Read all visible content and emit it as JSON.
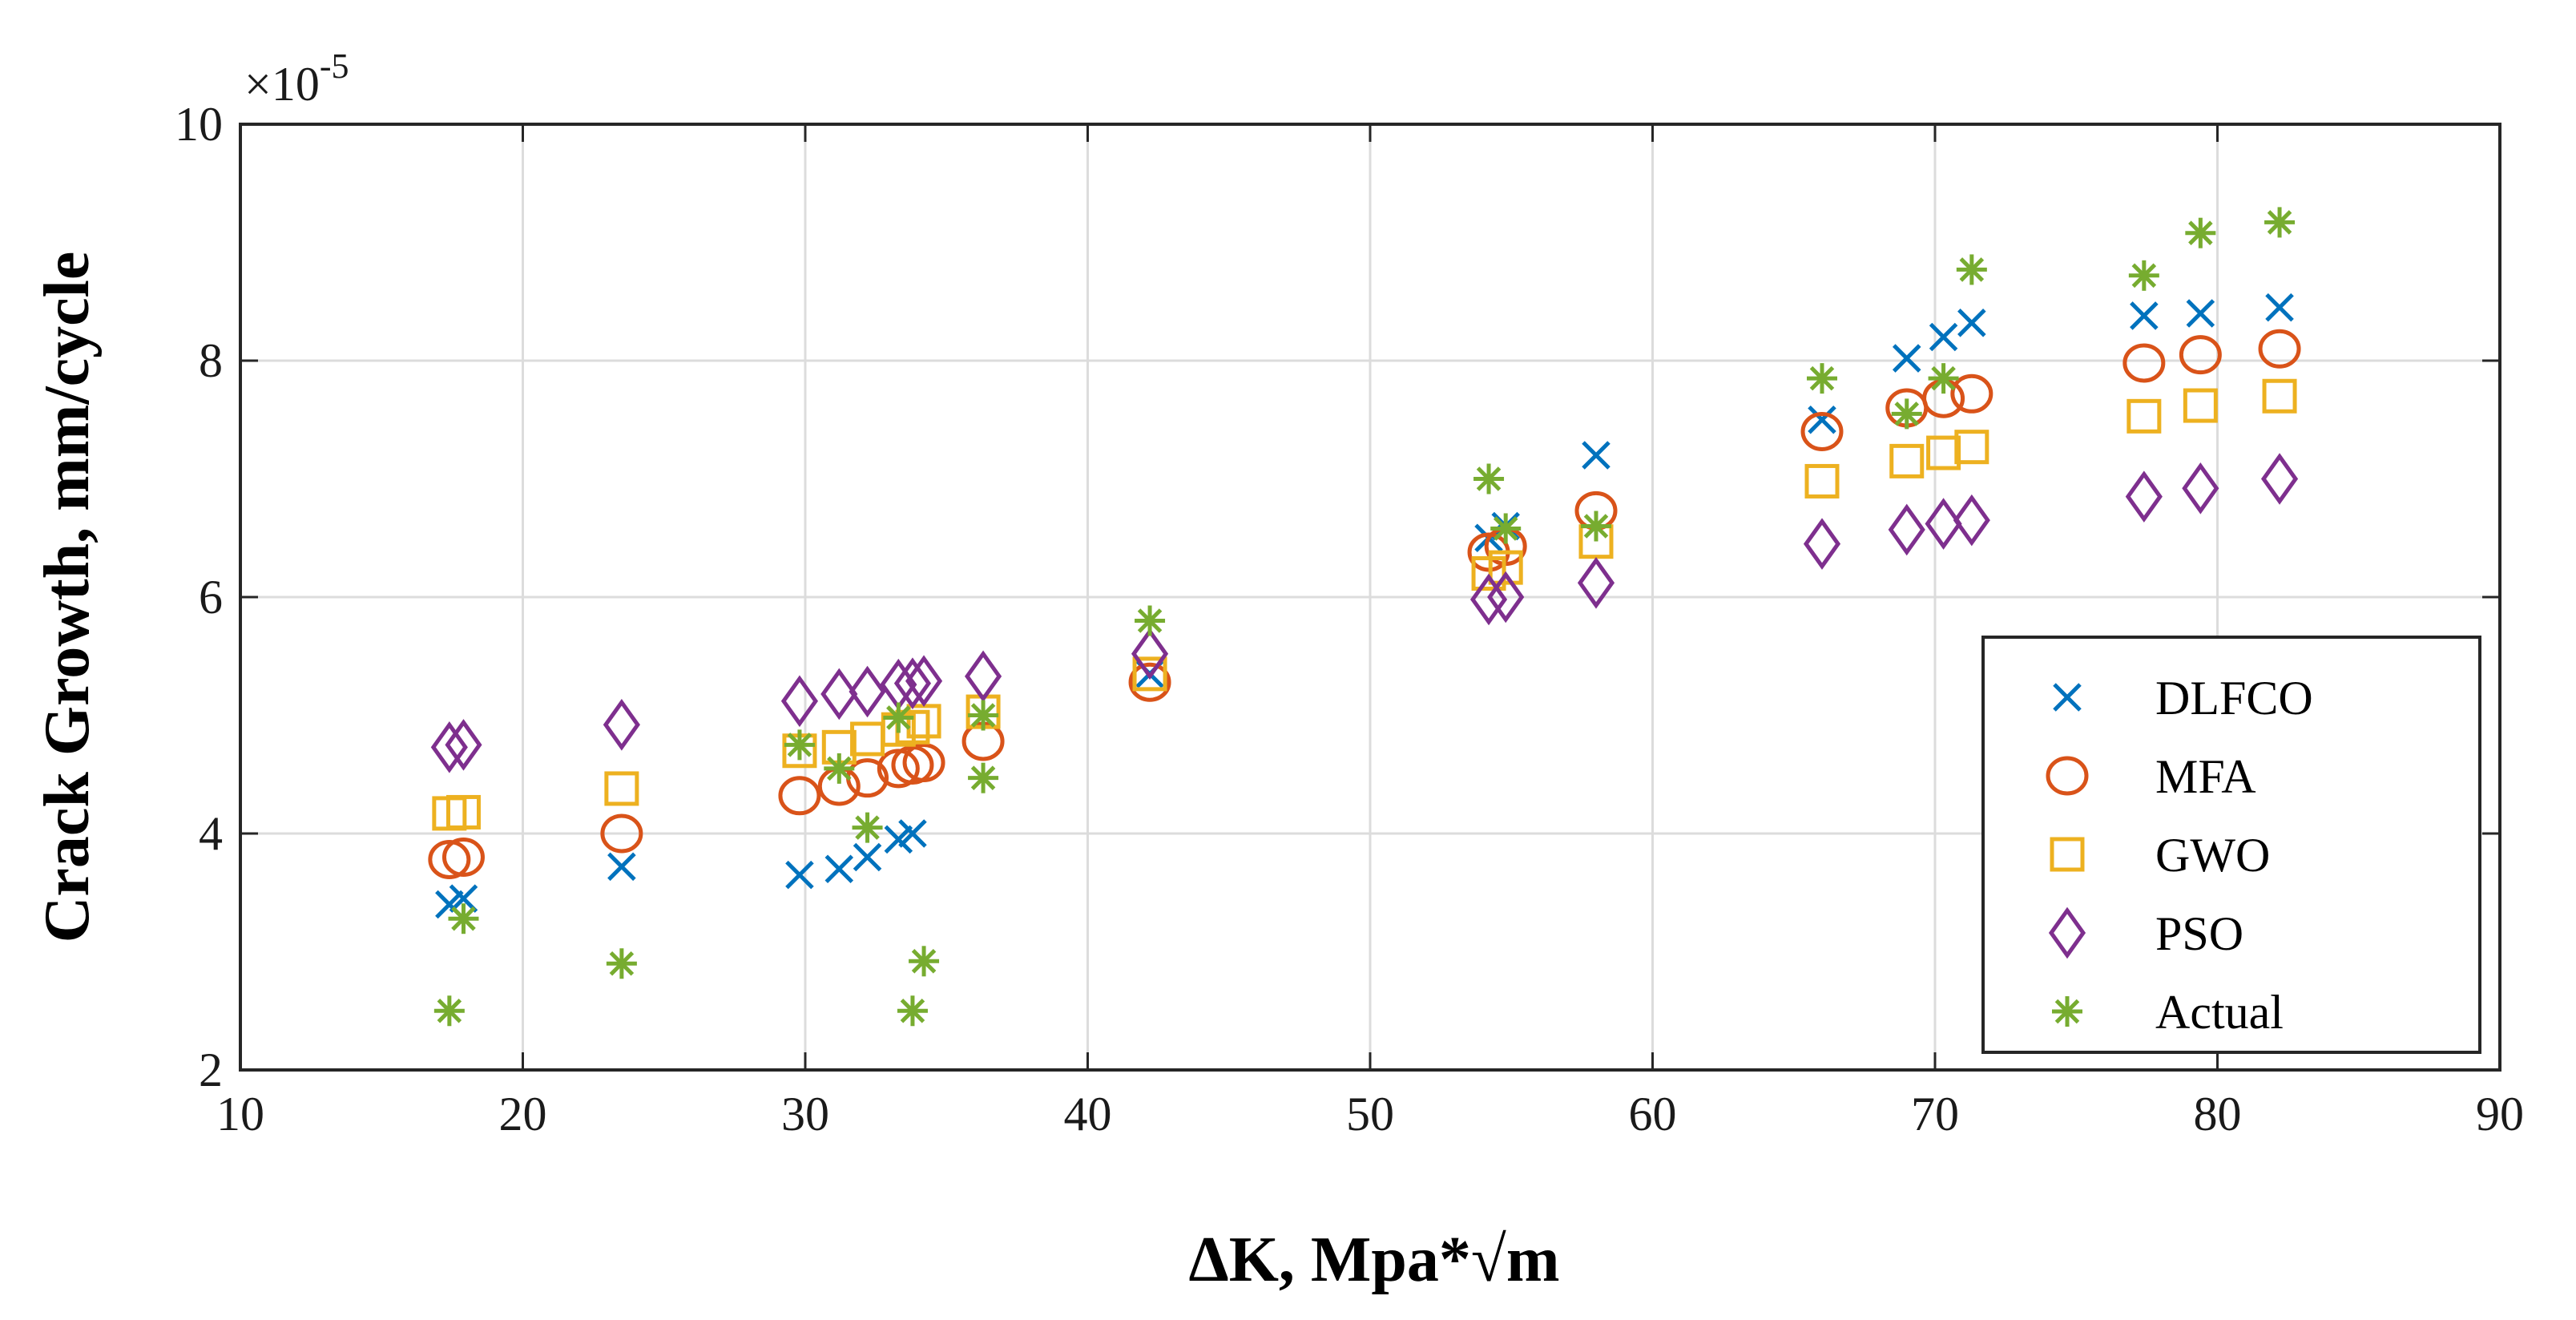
{
  "chart_data": {
    "type": "scatter",
    "title": "",
    "xlabel": "ΔK, Mpa*√m",
    "ylabel": "Crack Growth, mm/cycle",
    "xlim": [
      10,
      90
    ],
    "ylim": [
      2,
      10
    ],
    "xticks": [
      10,
      20,
      30,
      40,
      50,
      60,
      70,
      80,
      90
    ],
    "yticks": [
      2,
      4,
      6,
      8,
      10
    ],
    "xtick_labels": [
      "10",
      "20",
      "30",
      "40",
      "50",
      "60",
      "70",
      "80",
      "90"
    ],
    "ytick_labels": [
      "2",
      "4",
      "6",
      "8",
      "10"
    ],
    "y_exponent_base": "×10",
    "y_exponent_power": "-5",
    "grid": true,
    "legend_position": "bottom-right",
    "series": [
      {
        "name": "DLFCO",
        "marker": "x",
        "color": "#0072BD",
        "points": [
          [
            17.4,
            3.4
          ],
          [
            17.9,
            3.45
          ],
          [
            23.5,
            3.72
          ],
          [
            29.8,
            3.65
          ],
          [
            31.2,
            3.7
          ],
          [
            32.2,
            3.8
          ],
          [
            33.3,
            3.95
          ],
          [
            33.8,
            4.0
          ],
          [
            42.2,
            5.35
          ],
          [
            54.2,
            6.5
          ],
          [
            54.8,
            6.6
          ],
          [
            58.0,
            7.2
          ],
          [
            66.0,
            7.5
          ],
          [
            69.0,
            8.02
          ],
          [
            70.3,
            8.2
          ],
          [
            71.3,
            8.32
          ],
          [
            77.4,
            8.38
          ],
          [
            79.4,
            8.4
          ],
          [
            82.2,
            8.45
          ]
        ]
      },
      {
        "name": "MFA",
        "marker": "o",
        "color": "#D95319",
        "points": [
          [
            17.4,
            3.78
          ],
          [
            17.9,
            3.8
          ],
          [
            23.5,
            4.0
          ],
          [
            29.8,
            4.32
          ],
          [
            31.2,
            4.4
          ],
          [
            32.2,
            4.47
          ],
          [
            33.3,
            4.55
          ],
          [
            33.8,
            4.58
          ],
          [
            34.2,
            4.6
          ],
          [
            36.3,
            4.78
          ],
          [
            42.2,
            5.28
          ],
          [
            54.2,
            6.38
          ],
          [
            54.8,
            6.43
          ],
          [
            58.0,
            6.73
          ],
          [
            66.0,
            7.4
          ],
          [
            69.0,
            7.6
          ],
          [
            70.3,
            7.68
          ],
          [
            71.3,
            7.72
          ],
          [
            77.4,
            7.98
          ],
          [
            79.4,
            8.05
          ],
          [
            82.2,
            8.1
          ]
        ]
      },
      {
        "name": "GWO",
        "marker": "s",
        "color": "#EDB120",
        "points": [
          [
            17.4,
            4.17
          ],
          [
            17.9,
            4.18
          ],
          [
            23.5,
            4.38
          ],
          [
            29.8,
            4.7
          ],
          [
            31.2,
            4.73
          ],
          [
            32.2,
            4.8
          ],
          [
            33.3,
            4.88
          ],
          [
            33.8,
            4.9
          ],
          [
            34.2,
            4.95
          ],
          [
            36.3,
            5.03
          ],
          [
            42.2,
            5.35
          ],
          [
            54.2,
            6.2
          ],
          [
            54.8,
            6.25
          ],
          [
            58.0,
            6.47
          ],
          [
            66.0,
            6.98
          ],
          [
            69.0,
            7.15
          ],
          [
            70.3,
            7.22
          ],
          [
            71.3,
            7.27
          ],
          [
            77.4,
            7.53
          ],
          [
            79.4,
            7.62
          ],
          [
            82.2,
            7.7
          ]
        ]
      },
      {
        "name": "PSO",
        "marker": "d",
        "color": "#7E2F8E",
        "points": [
          [
            17.4,
            4.73
          ],
          [
            17.9,
            4.75
          ],
          [
            23.5,
            4.92
          ],
          [
            29.8,
            5.12
          ],
          [
            31.2,
            5.18
          ],
          [
            32.2,
            5.2
          ],
          [
            33.3,
            5.26
          ],
          [
            33.8,
            5.27
          ],
          [
            34.2,
            5.29
          ],
          [
            36.3,
            5.33
          ],
          [
            42.2,
            5.52
          ],
          [
            54.2,
            5.98
          ],
          [
            54.8,
            6.0
          ],
          [
            58.0,
            6.12
          ],
          [
            66.0,
            6.45
          ],
          [
            69.0,
            6.57
          ],
          [
            70.3,
            6.62
          ],
          [
            71.3,
            6.65
          ],
          [
            77.4,
            6.85
          ],
          [
            79.4,
            6.92
          ],
          [
            82.2,
            7.0
          ]
        ]
      },
      {
        "name": "Actual",
        "marker": "*",
        "color": "#77AC30",
        "points": [
          [
            17.4,
            2.5
          ],
          [
            17.9,
            3.28
          ],
          [
            23.5,
            2.9
          ],
          [
            29.8,
            4.75
          ],
          [
            31.2,
            4.55
          ],
          [
            32.2,
            4.05
          ],
          [
            33.3,
            4.98
          ],
          [
            33.8,
            2.5
          ],
          [
            34.2,
            2.92
          ],
          [
            36.3,
            4.47
          ],
          [
            36.3,
            5.0
          ],
          [
            42.2,
            5.8
          ],
          [
            54.2,
            7.0
          ],
          [
            54.8,
            6.58
          ],
          [
            58.0,
            6.6
          ],
          [
            66.0,
            7.85
          ],
          [
            69.0,
            7.55
          ],
          [
            70.3,
            7.85
          ],
          [
            71.3,
            8.77
          ],
          [
            77.4,
            8.72
          ],
          [
            79.4,
            9.08
          ],
          [
            82.2,
            9.17
          ]
        ]
      }
    ]
  }
}
